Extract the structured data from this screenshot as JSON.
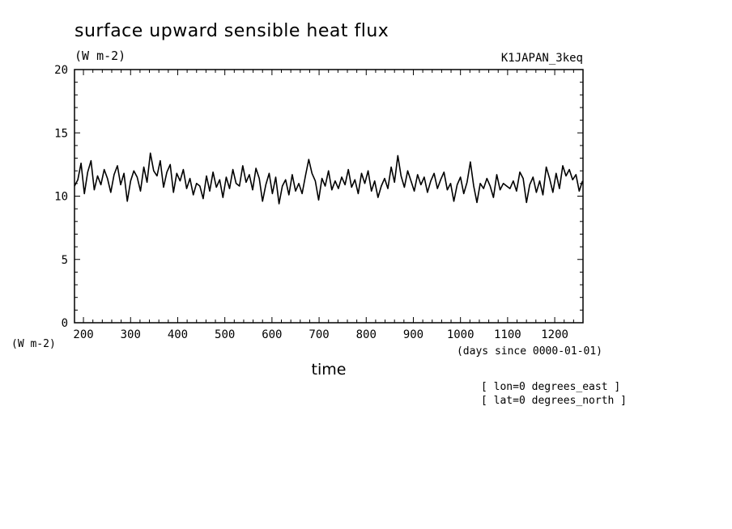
{
  "chart_data": {
    "type": "line",
    "title": "surface upward sensible heat flux",
    "units": "(W m-2)",
    "run_label": "K1JAPAN_3keq",
    "y_axis_units": "(W m-2)",
    "x_axis_units": "(days since 0000-01-01)",
    "xlabel": "time",
    "xlim": [
      181,
      1260
    ],
    "ylim": [
      0,
      20
    ],
    "x_ticks": [
      "200",
      "300",
      "400",
      "500",
      "600",
      "700",
      "800",
      "900",
      "1000",
      "1100",
      "1200"
    ],
    "y_ticks": [
      "0",
      "5",
      "10",
      "15",
      "20"
    ],
    "annotations": [
      "[ lon=0 degrees_east ]",
      "[ lat=0 degrees_north ]"
    ],
    "series": [
      {
        "x": [
          181,
          188,
          195,
          202,
          209,
          216,
          223,
          230,
          237,
          244,
          251,
          258,
          265,
          272,
          279,
          286,
          293,
          300,
          307,
          314,
          321,
          328,
          335,
          342,
          349,
          356,
          363,
          370,
          377,
          384,
          391,
          398,
          405,
          412,
          419,
          426,
          433,
          440,
          447,
          454,
          461,
          468,
          475,
          482,
          489,
          496,
          503,
          510,
          517,
          524,
          531,
          538,
          545,
          552,
          559,
          566,
          573,
          580,
          587,
          594,
          601,
          608,
          615,
          622,
          629,
          636,
          643,
          650,
          657,
          664,
          671,
          678,
          685,
          692,
          699,
          706,
          713,
          720,
          727,
          734,
          741,
          748,
          755,
          762,
          769,
          776,
          783,
          790,
          797,
          804,
          811,
          818,
          825,
          832,
          839,
          846,
          853,
          860,
          867,
          874,
          881,
          888,
          895,
          902,
          909,
          916,
          923,
          930,
          937,
          944,
          951,
          958,
          965,
          972,
          979,
          986,
          993,
          1000,
          1007,
          1014,
          1021,
          1028,
          1035,
          1042,
          1049,
          1056,
          1063,
          1070,
          1077,
          1084,
          1091,
          1098,
          1105,
          1112,
          1119,
          1126,
          1133,
          1140,
          1147,
          1154,
          1161,
          1168,
          1175,
          1182,
          1189,
          1196,
          1203,
          1210,
          1217,
          1224,
          1231,
          1238,
          1245,
          1252,
          1259
        ],
        "y": [
          10.8,
          11.3,
          12.6,
          10.2,
          11.9,
          12.8,
          10.5,
          11.6,
          10.9,
          12.1,
          11.4,
          10.3,
          11.7,
          12.4,
          10.9,
          11.8,
          9.6,
          11.2,
          12.0,
          11.5,
          10.4,
          12.3,
          11.1,
          13.4,
          12.0,
          11.6,
          12.8,
          10.7,
          11.9,
          12.5,
          10.3,
          11.8,
          11.2,
          12.1,
          10.6,
          11.4,
          10.1,
          11.0,
          10.8,
          9.8,
          11.6,
          10.4,
          11.9,
          10.7,
          11.3,
          9.9,
          11.5,
          10.6,
          12.1,
          11.0,
          10.8,
          12.4,
          11.1,
          11.7,
          10.5,
          12.2,
          11.4,
          9.6,
          10.9,
          11.8,
          10.2,
          11.5,
          9.4,
          10.8,
          11.3,
          10.1,
          11.7,
          10.4,
          11.0,
          10.2,
          11.6,
          12.9,
          11.8,
          11.2,
          9.7,
          11.4,
          10.8,
          12.0,
          10.5,
          11.2,
          10.6,
          11.5,
          10.9,
          12.1,
          10.7,
          11.3,
          10.2,
          11.8,
          11.0,
          12.0,
          10.4,
          11.2,
          9.9,
          10.8,
          11.4,
          10.6,
          12.3,
          11.1,
          13.2,
          11.6,
          10.7,
          12.0,
          11.2,
          10.4,
          11.7,
          10.9,
          11.5,
          10.3,
          11.2,
          11.8,
          10.6,
          11.3,
          11.9,
          10.5,
          11.0,
          9.6,
          10.9,
          11.5,
          10.2,
          11.1,
          12.7,
          10.8,
          9.5,
          11.0,
          10.6,
          11.4,
          10.8,
          9.9,
          11.7,
          10.5,
          11.0,
          10.8,
          10.6,
          11.2,
          10.4,
          11.9,
          11.4,
          9.5,
          10.9,
          11.5,
          10.3,
          11.2,
          10.1,
          12.3,
          11.4,
          10.3,
          11.8,
          10.6,
          12.4,
          11.6,
          12.1,
          11.3,
          11.7,
          10.4,
          11.2
        ]
      }
    ]
  }
}
